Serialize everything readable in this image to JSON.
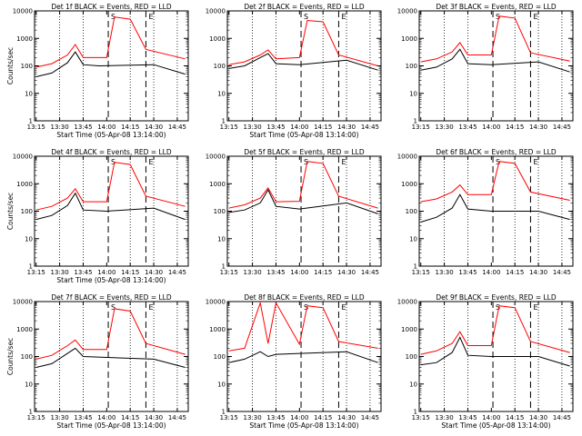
{
  "chart_data": [
    {
      "type": "line",
      "title": "Det 1f BLACK = Events, RED = LLD",
      "xlabel": "Start Time (05-Apr-08 13:14:00)",
      "ylabel": "Counts/sec",
      "x_ticks": [
        "13:15",
        "13:30",
        "13:45",
        "14:00",
        "14:15",
        "14:30",
        "14:45"
      ],
      "y_ticks": [
        "1",
        "10",
        "100",
        "1000",
        "10000"
      ],
      "ylim": [
        1,
        10000
      ],
      "log_y": true,
      "markers": [
        "S",
        "E"
      ],
      "series": [
        {
          "name": "Events",
          "color": "#000000",
          "values": [
            {
              "t": "13:15",
              "v": 40
            },
            {
              "t": "13:25",
              "v": 55
            },
            {
              "t": "13:35",
              "v": 130
            },
            {
              "t": "13:40",
              "v": 320
            },
            {
              "t": "13:45",
              "v": 110
            },
            {
              "t": "13:55",
              "v": 100
            },
            {
              "t": "14:30",
              "v": 110
            },
            {
              "t": "14:50",
              "v": 50
            }
          ]
        },
        {
          "name": "LLD",
          "color": "#ff0000",
          "values": [
            {
              "t": "13:15",
              "v": 90
            },
            {
              "t": "13:25",
              "v": 120
            },
            {
              "t": "13:35",
              "v": 250
            },
            {
              "t": "13:40",
              "v": 600
            },
            {
              "t": "13:45",
              "v": 200
            },
            {
              "t": "14:00",
              "v": 200
            },
            {
              "t": "14:05",
              "v": 6000
            },
            {
              "t": "14:15",
              "v": 5000
            },
            {
              "t": "14:25",
              "v": 400
            },
            {
              "t": "14:50",
              "v": 180
            }
          ]
        }
      ]
    },
    {
      "type": "line",
      "title": "Det 2f BLACK = Events, RED = LLD",
      "xlabel": "Start Time (05-Apr-08 13:14:00)",
      "ylabel": "",
      "x_ticks": [
        "13:15",
        "13:30",
        "13:45",
        "14:00",
        "14:15",
        "14:30",
        "14:45"
      ],
      "y_ticks": [
        "1",
        "10",
        "100",
        "1000",
        "10000"
      ],
      "ylim": [
        1,
        10000
      ],
      "log_y": true,
      "markers": [
        "S",
        "E"
      ],
      "series": [
        {
          "name": "Events",
          "color": "#000000",
          "values": [
            {
              "t": "13:15",
              "v": 80
            },
            {
              "t": "13:25",
              "v": 100
            },
            {
              "t": "13:35",
              "v": 200
            },
            {
              "t": "13:40",
              "v": 280
            },
            {
              "t": "13:45",
              "v": 120
            },
            {
              "t": "14:00",
              "v": 110
            },
            {
              "t": "14:30",
              "v": 160
            },
            {
              "t": "14:50",
              "v": 70
            }
          ]
        },
        {
          "name": "LLD",
          "color": "#ff0000",
          "values": [
            {
              "t": "13:15",
              "v": 110
            },
            {
              "t": "13:25",
              "v": 140
            },
            {
              "t": "13:35",
              "v": 250
            },
            {
              "t": "13:40",
              "v": 380
            },
            {
              "t": "13:45",
              "v": 180
            },
            {
              "t": "14:00",
              "v": 200
            },
            {
              "t": "14:05",
              "v": 4500
            },
            {
              "t": "14:15",
              "v": 4000
            },
            {
              "t": "14:25",
              "v": 250
            },
            {
              "t": "14:50",
              "v": 100
            }
          ]
        }
      ]
    },
    {
      "type": "line",
      "title": "Det 3f BLACK = Events, RED = LLD",
      "xlabel": "",
      "ylabel": "",
      "x_ticks": [
        "13:15",
        "13:30",
        "13:45",
        "14:00",
        "14:15",
        "14:30",
        "14:45"
      ],
      "y_ticks": [
        "1",
        "10",
        "100",
        "1000",
        "10000"
      ],
      "ylim": [
        1,
        10000
      ],
      "log_y": true,
      "markers": [
        "S",
        "E"
      ],
      "series": [
        {
          "name": "Events",
          "color": "#000000",
          "values": [
            {
              "t": "13:15",
              "v": 70
            },
            {
              "t": "13:25",
              "v": 90
            },
            {
              "t": "13:35",
              "v": 180
            },
            {
              "t": "13:40",
              "v": 400
            },
            {
              "t": "13:45",
              "v": 120
            },
            {
              "t": "14:00",
              "v": 110
            },
            {
              "t": "14:30",
              "v": 140
            },
            {
              "t": "14:50",
              "v": 60
            }
          ]
        },
        {
          "name": "LLD",
          "color": "#ff0000",
          "values": [
            {
              "t": "13:15",
              "v": 140
            },
            {
              "t": "13:25",
              "v": 180
            },
            {
              "t": "13:35",
              "v": 320
            },
            {
              "t": "13:40",
              "v": 700
            },
            {
              "t": "13:45",
              "v": 250
            },
            {
              "t": "14:00",
              "v": 250
            },
            {
              "t": "14:05",
              "v": 6500
            },
            {
              "t": "14:15",
              "v": 5500
            },
            {
              "t": "14:25",
              "v": 300
            },
            {
              "t": "14:50",
              "v": 150
            }
          ]
        }
      ]
    },
    {
      "type": "line",
      "title": "Det 4f BLACK = Events, RED = LLD",
      "xlabel": "Start Time (05-Apr-08 13:14:00)",
      "ylabel": "Counts/sec",
      "x_ticks": [
        "13:15",
        "13:30",
        "13:45",
        "14:00",
        "14:15",
        "14:30",
        "14:45"
      ],
      "y_ticks": [
        "1",
        "10",
        "100",
        "1000",
        "10000"
      ],
      "ylim": [
        1,
        10000
      ],
      "log_y": true,
      "markers": [
        "S",
        "E"
      ],
      "series": [
        {
          "name": "Events",
          "color": "#000000",
          "values": [
            {
              "t": "13:15",
              "v": 50
            },
            {
              "t": "13:25",
              "v": 70
            },
            {
              "t": "13:35",
              "v": 160
            },
            {
              "t": "13:40",
              "v": 450
            },
            {
              "t": "13:45",
              "v": 110
            },
            {
              "t": "14:00",
              "v": 100
            },
            {
              "t": "14:30",
              "v": 130
            },
            {
              "t": "14:50",
              "v": 50
            }
          ]
        },
        {
          "name": "LLD",
          "color": "#ff0000",
          "values": [
            {
              "t": "13:15",
              "v": 110
            },
            {
              "t": "13:25",
              "v": 150
            },
            {
              "t": "13:35",
              "v": 300
            },
            {
              "t": "13:40",
              "v": 650
            },
            {
              "t": "13:45",
              "v": 220
            },
            {
              "t": "14:00",
              "v": 220
            },
            {
              "t": "14:05",
              "v": 6000
            },
            {
              "t": "14:15",
              "v": 5000
            },
            {
              "t": "14:25",
              "v": 350
            },
            {
              "t": "14:50",
              "v": 150
            }
          ]
        }
      ]
    },
    {
      "type": "line",
      "title": "Det 5f BLACK = Events, RED = LLD",
      "xlabel": "",
      "ylabel": "",
      "x_ticks": [
        "13:15",
        "13:30",
        "13:45",
        "14:00",
        "14:15",
        "14:30",
        "14:45"
      ],
      "y_ticks": [
        "1",
        "10",
        "100",
        "1000",
        "10000"
      ],
      "ylim": [
        1,
        10000
      ],
      "log_y": true,
      "markers": [
        "S",
        "E"
      ],
      "series": [
        {
          "name": "Events",
          "color": "#000000",
          "values": [
            {
              "t": "13:15",
              "v": 90
            },
            {
              "t": "13:25",
              "v": 110
            },
            {
              "t": "13:35",
              "v": 200
            },
            {
              "t": "13:40",
              "v": 600
            },
            {
              "t": "13:45",
              "v": 150
            },
            {
              "t": "14:00",
              "v": 120
            },
            {
              "t": "14:30",
              "v": 200
            },
            {
              "t": "14:50",
              "v": 80
            }
          ]
        },
        {
          "name": "LLD",
          "color": "#ff0000",
          "values": [
            {
              "t": "13:15",
              "v": 130
            },
            {
              "t": "13:25",
              "v": 170
            },
            {
              "t": "13:35",
              "v": 300
            },
            {
              "t": "13:40",
              "v": 700
            },
            {
              "t": "13:45",
              "v": 220
            },
            {
              "t": "14:00",
              "v": 230
            },
            {
              "t": "14:05",
              "v": 6500
            },
            {
              "t": "14:15",
              "v": 5500
            },
            {
              "t": "14:25",
              "v": 350
            },
            {
              "t": "14:50",
              "v": 130
            }
          ]
        }
      ]
    },
    {
      "type": "line",
      "title": "Det 6f BLACK = Events, RED = LLD",
      "xlabel": "",
      "ylabel": "",
      "x_ticks": [
        "13:15",
        "13:30",
        "13:45",
        "14:00",
        "14:15",
        "14:30",
        "14:45"
      ],
      "y_ticks": [
        "1",
        "10",
        "100",
        "1000",
        "10000"
      ],
      "ylim": [
        1,
        10000
      ],
      "log_y": true,
      "markers": [
        "S",
        "E"
      ],
      "series": [
        {
          "name": "Events",
          "color": "#000000",
          "values": [
            {
              "t": "13:15",
              "v": 40
            },
            {
              "t": "13:25",
              "v": 60
            },
            {
              "t": "13:35",
              "v": 130
            },
            {
              "t": "13:40",
              "v": 400
            },
            {
              "t": "13:45",
              "v": 120
            },
            {
              "t": "14:00",
              "v": 100
            },
            {
              "t": "14:30",
              "v": 100
            },
            {
              "t": "14:50",
              "v": 50
            }
          ]
        },
        {
          "name": "LLD",
          "color": "#ff0000",
          "values": [
            {
              "t": "13:15",
              "v": 220
            },
            {
              "t": "13:25",
              "v": 280
            },
            {
              "t": "13:35",
              "v": 500
            },
            {
              "t": "13:40",
              "v": 900
            },
            {
              "t": "13:45",
              "v": 400
            },
            {
              "t": "14:00",
              "v": 400
            },
            {
              "t": "14:05",
              "v": 6500
            },
            {
              "t": "14:15",
              "v": 5500
            },
            {
              "t": "14:25",
              "v": 500
            },
            {
              "t": "14:50",
              "v": 250
            }
          ]
        }
      ]
    },
    {
      "type": "line",
      "title": "Det 7f BLACK = Events, RED = LLD",
      "xlabel": "Start Time (05-Apr-08 13:14:00)",
      "ylabel": "Counts/sec",
      "x_ticks": [
        "13:15",
        "13:30",
        "13:45",
        "14:00",
        "14:15",
        "14:30",
        "14:45"
      ],
      "y_ticks": [
        "1",
        "10",
        "100",
        "1000",
        "10000"
      ],
      "ylim": [
        1,
        10000
      ],
      "log_y": true,
      "markers": [
        "S",
        "E"
      ],
      "series": [
        {
          "name": "Events",
          "color": "#000000",
          "values": [
            {
              "t": "13:15",
              "v": 40
            },
            {
              "t": "13:25",
              "v": 55
            },
            {
              "t": "13:35",
              "v": 130
            },
            {
              "t": "13:40",
              "v": 200
            },
            {
              "t": "13:45",
              "v": 100
            },
            {
              "t": "14:30",
              "v": 80
            },
            {
              "t": "14:50",
              "v": 40
            }
          ]
        },
        {
          "name": "LLD",
          "color": "#ff0000",
          "values": [
            {
              "t": "13:15",
              "v": 80
            },
            {
              "t": "13:25",
              "v": 110
            },
            {
              "t": "13:35",
              "v": 250
            },
            {
              "t": "13:40",
              "v": 400
            },
            {
              "t": "13:45",
              "v": 180
            },
            {
              "t": "14:00",
              "v": 180
            },
            {
              "t": "14:05",
              "v": 5500
            },
            {
              "t": "14:15",
              "v": 4500
            },
            {
              "t": "14:25",
              "v": 300
            },
            {
              "t": "14:50",
              "v": 120
            }
          ]
        }
      ]
    },
    {
      "type": "line",
      "title": "Det 8f BLACK = Events, RED = LLD",
      "xlabel": "Start Time (05-Apr-08 13:14:00)",
      "ylabel": "",
      "x_ticks": [
        "13:15",
        "13:30",
        "13:45",
        "14:00",
        "14:15",
        "14:30",
        "14:45"
      ],
      "y_ticks": [
        "1",
        "10",
        "100",
        "1000",
        "10000"
      ],
      "ylim": [
        1,
        10000
      ],
      "log_y": true,
      "markers": [
        "S",
        "E"
      ],
      "series": [
        {
          "name": "Events",
          "color": "#000000",
          "values": [
            {
              "t": "13:15",
              "v": 60
            },
            {
              "t": "13:25",
              "v": 80
            },
            {
              "t": "13:35",
              "v": 150
            },
            {
              "t": "13:40",
              "v": 100
            },
            {
              "t": "13:45",
              "v": 120
            },
            {
              "t": "14:00",
              "v": 130
            },
            {
              "t": "14:30",
              "v": 150
            },
            {
              "t": "14:50",
              "v": 60
            }
          ]
        },
        {
          "name": "LLD",
          "color": "#ff0000",
          "values": [
            {
              "t": "13:15",
              "v": 160
            },
            {
              "t": "13:25",
              "v": 200
            },
            {
              "t": "13:35",
              "v": 9000
            },
            {
              "t": "13:40",
              "v": 300
            },
            {
              "t": "13:45",
              "v": 9000
            },
            {
              "t": "14:00",
              "v": 280
            },
            {
              "t": "14:05",
              "v": 7000
            },
            {
              "t": "14:15",
              "v": 6000
            },
            {
              "t": "14:25",
              "v": 350
            },
            {
              "t": "14:50",
              "v": 200
            }
          ]
        }
      ]
    },
    {
      "type": "line",
      "title": "Det 9f BLACK = Events, RED = LLD",
      "xlabel": "Start Time (05-Apr-08 13:14:00)",
      "ylabel": "",
      "x_ticks": [
        "13:15",
        "13:30",
        "13:45",
        "14:00",
        "14:15",
        "14:30",
        "14:45"
      ],
      "y_ticks": [
        "1",
        "10",
        "100",
        "1000",
        "10000"
      ],
      "ylim": [
        1,
        10000
      ],
      "log_y": true,
      "markers": [
        "S",
        "E"
      ],
      "series": [
        {
          "name": "Events",
          "color": "#000000",
          "values": [
            {
              "t": "13:15",
              "v": 50
            },
            {
              "t": "13:25",
              "v": 60
            },
            {
              "t": "13:35",
              "v": 140
            },
            {
              "t": "13:40",
              "v": 500
            },
            {
              "t": "13:45",
              "v": 110
            },
            {
              "t": "14:00",
              "v": 100
            },
            {
              "t": "14:30",
              "v": 100
            },
            {
              "t": "14:50",
              "v": 45
            }
          ]
        },
        {
          "name": "LLD",
          "color": "#ff0000",
          "values": [
            {
              "t": "13:15",
              "v": 120
            },
            {
              "t": "13:25",
              "v": 160
            },
            {
              "t": "13:35",
              "v": 300
            },
            {
              "t": "13:40",
              "v": 800
            },
            {
              "t": "13:45",
              "v": 250
            },
            {
              "t": "14:00",
              "v": 250
            },
            {
              "t": "14:05",
              "v": 7000
            },
            {
              "t": "14:15",
              "v": 6000
            },
            {
              "t": "14:25",
              "v": 350
            },
            {
              "t": "14:50",
              "v": 140
            }
          ]
        }
      ]
    }
  ]
}
